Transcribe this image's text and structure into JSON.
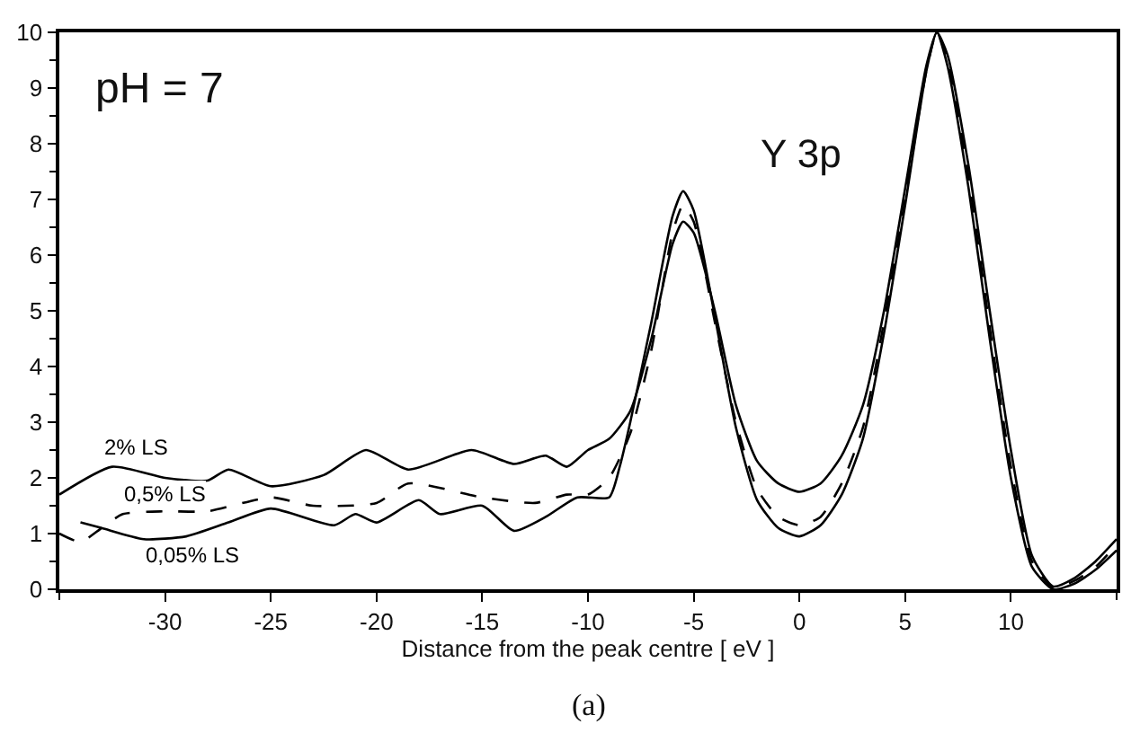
{
  "chart_data": {
    "type": "line",
    "xlabel": "Distance from the peak centre [ eV ]",
    "xlim": [
      -35,
      15
    ],
    "xticks": [
      -30,
      -25,
      -20,
      -15,
      -10,
      -5,
      0,
      5,
      10
    ],
    "ylim": [
      0,
      10
    ],
    "yticks": [
      0,
      1,
      2,
      3,
      4,
      5,
      6,
      7,
      8,
      9,
      10
    ],
    "legend": false,
    "marker": "none",
    "annotations": [
      "pH = 7",
      "Y 3p",
      "(a)"
    ],
    "series": [
      {
        "name": "2% LS",
        "color": "#000000",
        "line_style": "solid",
        "x": [
          -35,
          -32.5,
          -30,
          -28,
          -27,
          -25,
          -22.5,
          -20.5,
          -18.5,
          -15.5,
          -13.5,
          -12,
          -11,
          -10,
          -9,
          -8,
          -7,
          -6,
          -5.5,
          -5,
          -4,
          -3,
          -2,
          -1,
          0,
          1,
          2,
          3,
          4,
          5,
          6,
          6.5,
          7,
          8,
          9,
          10,
          11,
          12,
          13,
          14,
          15
        ],
        "values": [
          1.7,
          2.2,
          2.0,
          1.95,
          2.15,
          1.85,
          2.05,
          2.5,
          2.15,
          2.5,
          2.25,
          2.4,
          2.2,
          2.5,
          2.7,
          3.2,
          4.5,
          6.2,
          6.6,
          6.4,
          5.0,
          3.3,
          2.3,
          1.9,
          1.75,
          1.9,
          2.4,
          3.3,
          5.0,
          7.2,
          9.4,
          10,
          9.6,
          7.6,
          5.0,
          2.5,
          0.6,
          0.05,
          0.2,
          0.5,
          0.9
        ]
      },
      {
        "name": "0,5% LS",
        "color": "#000000",
        "line_style": "dashed",
        "x": [
          -35,
          -34,
          -33,
          -32,
          -30,
          -28,
          -25,
          -23,
          -20,
          -18.5,
          -15,
          -12.5,
          -11,
          -10,
          -9,
          -8,
          -7,
          -6,
          -5.5,
          -5,
          -4,
          -3,
          -2,
          -1,
          0,
          1,
          2,
          3,
          4,
          5,
          6,
          6.5,
          7,
          8,
          9,
          10,
          11,
          12,
          13,
          14,
          15
        ],
        "values": [
          1.0,
          0.85,
          1.1,
          1.35,
          1.4,
          1.4,
          1.65,
          1.5,
          1.55,
          1.9,
          1.65,
          1.55,
          1.7,
          1.7,
          2.0,
          2.8,
          4.3,
          6.4,
          6.9,
          6.6,
          4.8,
          3.0,
          1.8,
          1.3,
          1.15,
          1.3,
          1.9,
          2.9,
          4.8,
          7.0,
          9.3,
          10,
          9.5,
          7.4,
          4.7,
          2.2,
          0.5,
          0.03,
          0.15,
          0.4,
          0.8
        ]
      },
      {
        "name": "0,05% LS",
        "color": "#000000",
        "line_style": "solid",
        "x": [
          -34,
          -33,
          -31,
          -29,
          -27,
          -25,
          -22,
          -21,
          -20,
          -18,
          -17,
          -15,
          -13.5,
          -12,
          -10.5,
          -9,
          -8.5,
          -8,
          -7,
          -6,
          -5.5,
          -5,
          -4,
          -3,
          -2,
          -1,
          0,
          1,
          2,
          3,
          4,
          5,
          6,
          6.5,
          7,
          8,
          9,
          10,
          11,
          12,
          13,
          14,
          15
        ],
        "values": [
          1.2,
          1.1,
          0.9,
          0.95,
          1.2,
          1.45,
          1.15,
          1.35,
          1.2,
          1.6,
          1.35,
          1.5,
          1.05,
          1.3,
          1.65,
          1.65,
          2.2,
          3.0,
          4.8,
          6.7,
          7.15,
          6.8,
          4.9,
          2.9,
          1.6,
          1.1,
          0.95,
          1.15,
          1.7,
          2.7,
          4.6,
          6.9,
          9.3,
          10,
          9.4,
          7.2,
          4.5,
          2.0,
          0.4,
          0.0,
          0.1,
          0.35,
          0.7
        ]
      }
    ]
  }
}
